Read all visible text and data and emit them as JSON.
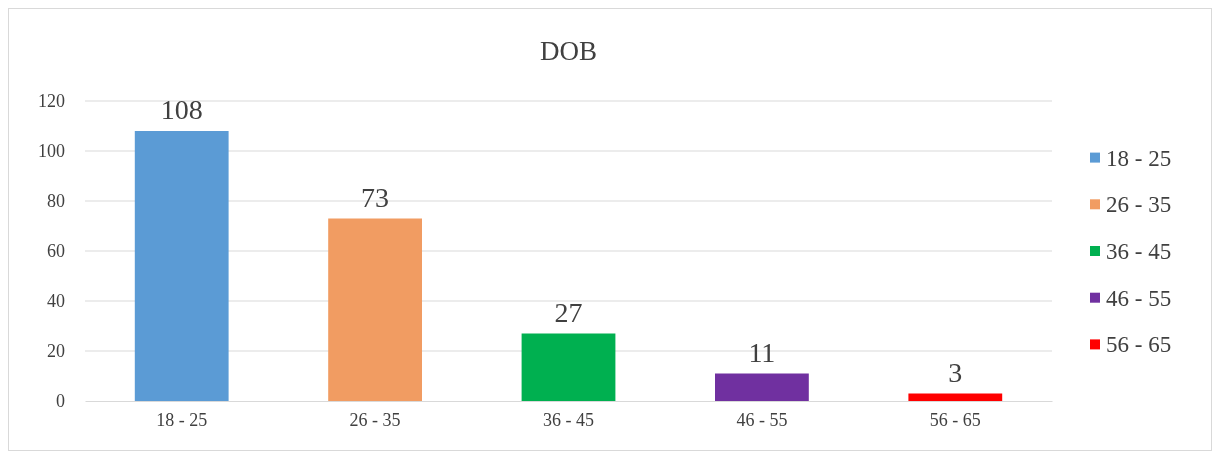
{
  "chart_data": {
    "type": "bar",
    "title": "DOB",
    "categories": [
      "18 - 25",
      "26 - 35",
      "36 - 45",
      "46 - 55",
      "56 - 65"
    ],
    "series": [
      {
        "name": "18 - 25",
        "color": "#5b9bd5",
        "values": [
          108,
          null,
          null,
          null,
          null
        ]
      },
      {
        "name": "26 - 35",
        "color": "#f19c62",
        "values": [
          null,
          73,
          null,
          null,
          null
        ]
      },
      {
        "name": "36 - 45",
        "color": "#00b050",
        "values": [
          null,
          null,
          27,
          null,
          null
        ]
      },
      {
        "name": "46 - 55",
        "color": "#7030a0",
        "values": [
          null,
          null,
          null,
          11,
          null
        ]
      },
      {
        "name": "56 - 65",
        "color": "#ff0000",
        "values": [
          null,
          null,
          null,
          null,
          3
        ]
      }
    ],
    "stacked": true,
    "ylim": [
      0,
      120
    ],
    "yticks": [
      0,
      20,
      40,
      60,
      80,
      100,
      120
    ],
    "grid": "y",
    "legend": "right",
    "data_labels": true
  }
}
